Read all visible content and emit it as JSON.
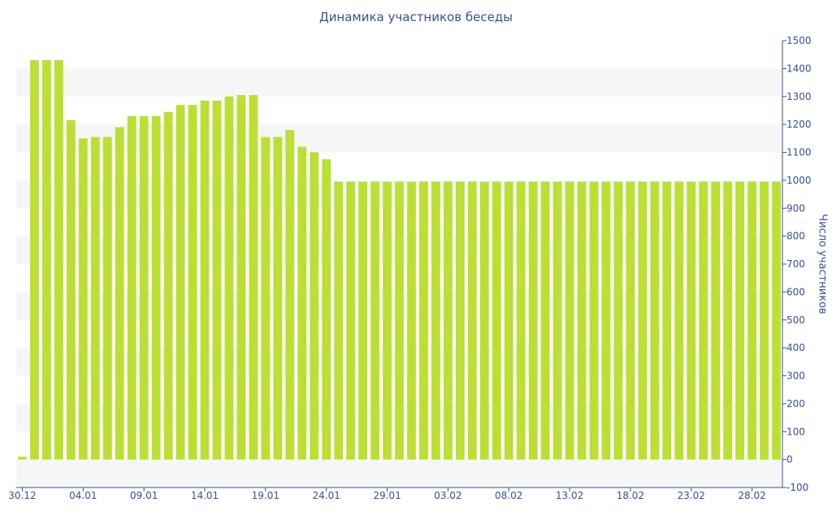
{
  "chart_data": {
    "type": "bar",
    "title": "Динамика участников беседы",
    "xlabel": "",
    "ylabel": "Число участников",
    "ylim": [
      -100,
      1500
    ],
    "y_ticks": [
      -100,
      0,
      100,
      200,
      300,
      400,
      500,
      600,
      700,
      800,
      900,
      1000,
      1100,
      1200,
      1300,
      1400,
      1500
    ],
    "y_axis_position": "right",
    "x_tick_labels": [
      "30.12",
      "04.01",
      "09.01",
      "14.01",
      "19.01",
      "24.01",
      "29.01",
      "03.02",
      "08.02",
      "13.02",
      "18.02",
      "23.02",
      "28.02"
    ],
    "bar_color": "#bbdf33",
    "band_color": "#f6f6f6",
    "axis_color": "#3a4f8f",
    "values": [
      10,
      1430,
      1430,
      1430,
      1215,
      1150,
      1155,
      1155,
      1190,
      1230,
      1230,
      1230,
      1245,
      1270,
      1270,
      1285,
      1285,
      1300,
      1305,
      1305,
      1155,
      1155,
      1180,
      1120,
      1100,
      1075,
      995,
      995,
      995,
      995,
      995,
      995,
      995,
      995,
      995,
      995,
      995,
      995,
      995,
      995,
      995,
      995,
      995,
      995,
      995,
      995,
      995,
      995,
      995,
      995,
      995,
      995,
      995,
      995,
      995,
      995,
      995,
      995,
      995,
      995,
      995,
      995,
      995
    ]
  }
}
